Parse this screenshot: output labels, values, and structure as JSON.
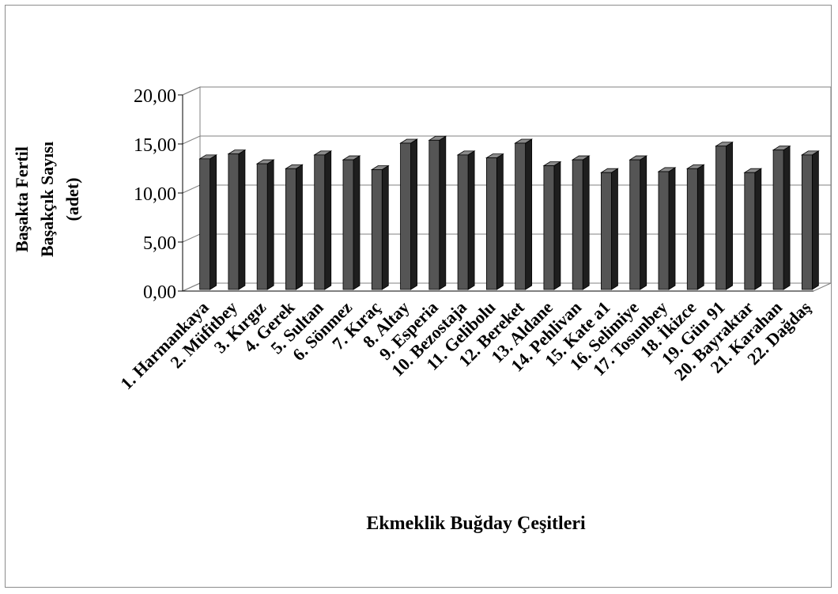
{
  "chart_data": {
    "type": "bar",
    "title": "",
    "xlabel": "Ekmeklik Buğday Çeşitleri",
    "ylabel_lines": [
      "Başakta Fertil",
      "Başakçık Sayısı",
      "(adet)"
    ],
    "ylim": [
      0,
      20
    ],
    "yticks": [
      "0,00",
      "5,00",
      "10,00",
      "15,00",
      "20,00"
    ],
    "grid": true,
    "legend": "none",
    "categories": [
      "1. Harmankaya",
      "2. Müfitbey",
      "3. Kırgız",
      "4. Gerek",
      "5. Sultan",
      "6. Sönmez",
      "7. Kıraç",
      "8.  Altay",
      "9. Esperia",
      "10. Bezostaja",
      "11. Gelibolu",
      "12. Bereket",
      "13. Aldane",
      "14. Pehlivan",
      "15. Kate a1",
      "16. Selimiye",
      "17. Tosunbey",
      "18. İkizce",
      "19. Gün 91",
      "20. Bayraktar",
      "21. Karahan",
      "22. Dağdaş"
    ],
    "values": [
      13.4,
      13.9,
      12.9,
      12.4,
      13.8,
      13.3,
      12.3,
      15.0,
      15.3,
      13.8,
      13.5,
      15.0,
      12.7,
      13.3,
      12.0,
      13.3,
      12.1,
      12.4,
      14.7,
      12.0,
      14.3,
      13.8
    ],
    "colors": {
      "bar_front": "#555555",
      "bar_side": "#1e1e1e",
      "bar_top": "#8a8a8a",
      "grid": "#808080",
      "axis": "#000000"
    }
  }
}
